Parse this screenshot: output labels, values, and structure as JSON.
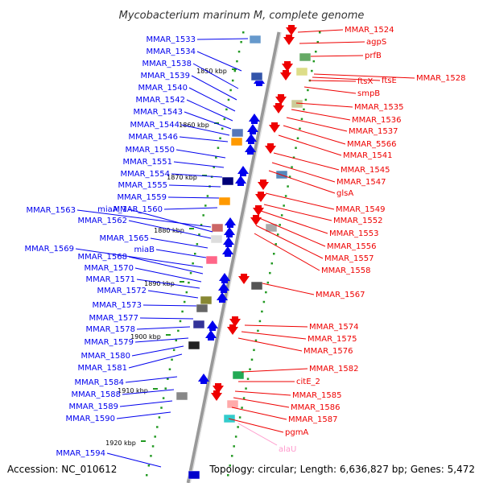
{
  "title": "Mycobacterium marinum M, complete genome",
  "accession": "Accession: NC_010612",
  "summary": "Topology: circular; Length: 6,636,827 bp; Genes: 5,472",
  "colors": {
    "left_label": "#0000ee",
    "right_label": "#ee0000",
    "rna_label": "#ff99cc",
    "backbone": "#999999",
    "tick": "#229922"
  },
  "ticks": [
    "1850 kbp",
    "1860 kbp",
    "1870 kbp",
    "1880 kbp",
    "1890 kbp",
    "1900 kbp",
    "1910 kbp",
    "1920 kbp"
  ],
  "left_genes": [
    "MMAR_1533",
    "MMAR_1534",
    "MMAR_1538",
    "MMAR_1539",
    "MMAR_1540",
    "MMAR_1542",
    "MMAR_1543",
    "MMAR_1544",
    "MMAR_1546",
    "MMAR_1550",
    "MMAR_1551",
    "MMAR_1554",
    "MMAR_1555",
    "MMAR_1559",
    "MMAR_1560",
    "MMAR_1563",
    "miaA_1",
    "MMAR_1562",
    "MMAR_1565",
    "miaB",
    "MMAR_1569",
    "MMAR_1568",
    "MMAR_1570",
    "MMAR_1571",
    "MMAR_1572",
    "MMAR_1573",
    "MMAR_1577",
    "MMAR_1578",
    "MMAR_1579",
    "MMAR_1580",
    "MMAR_1581",
    "MMAR_1584",
    "MMAR_1588",
    "MMAR_1589",
    "MMAR_1590",
    "MMAR_1594"
  ],
  "right_genes": [
    "MMAR_1524",
    "agpS",
    "prfB",
    "MMAR_1528",
    "ftsE",
    "ftsX",
    "smpB",
    "MMAR_1535",
    "MMAR_1536",
    "MMAR_1537",
    "MMAR_5566",
    "MMAR_1541",
    "MMAR_1545",
    "MMAR_1547",
    "glsA",
    "MMAR_1549",
    "MMAR_1552",
    "MMAR_1553",
    "MMAR_1556",
    "MMAR_1557",
    "MMAR_1558",
    "MMAR_1567",
    "MMAR_1574",
    "MMAR_1575",
    "MMAR_1576",
    "MMAR_1582",
    "citE_2",
    "MMAR_1585",
    "MMAR_1586",
    "MMAR_1587",
    "pgmA"
  ],
  "rna_genes": [
    "alaU"
  ]
}
